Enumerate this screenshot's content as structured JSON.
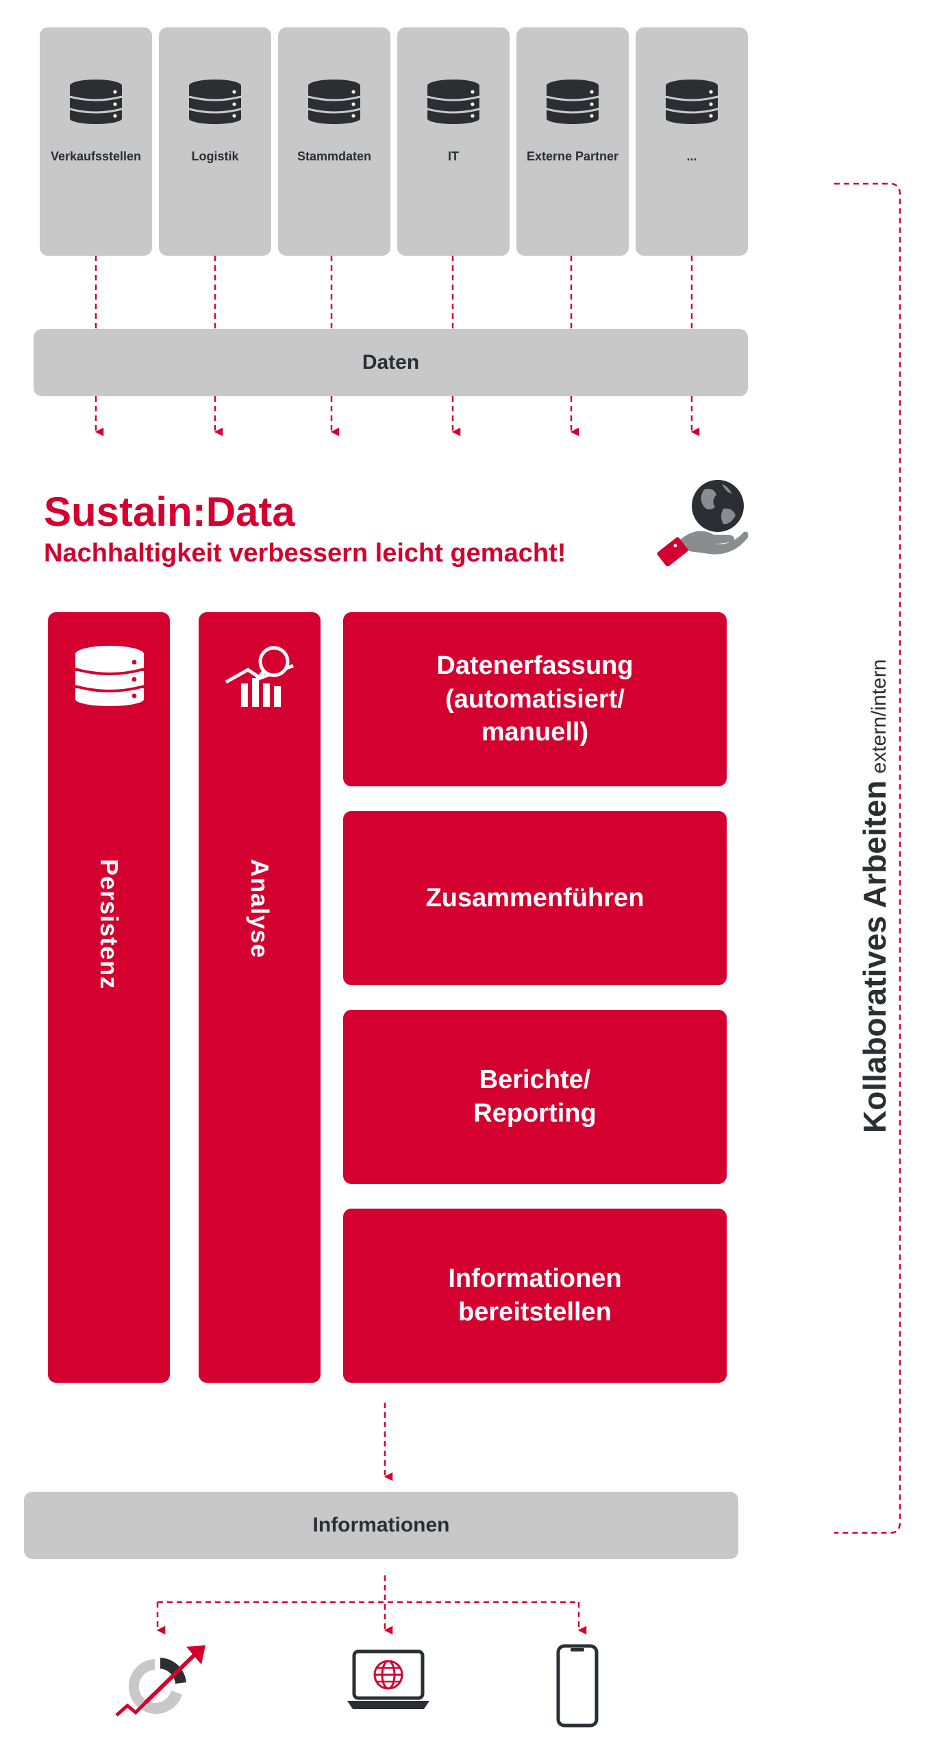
{
  "sources": [
    {
      "label": "Verkaufsstellen",
      "icon": "database-icon"
    },
    {
      "label": "Logistik",
      "icon": "database-icon"
    },
    {
      "label": "Stammdaten",
      "icon": "database-icon"
    },
    {
      "label": "IT",
      "icon": "database-icon"
    },
    {
      "label": "Externe Partner",
      "icon": "database-icon"
    },
    {
      "label": "...",
      "icon": "database-icon"
    }
  ],
  "data_bar": {
    "label": "Daten"
  },
  "headline": {
    "title": "Sustain:Data",
    "subtitle": "Nachhaltigkeit verbessern leicht gemacht!",
    "icon": "globe-in-hand-icon"
  },
  "pillars": [
    {
      "label": "Persistenz",
      "icon": "database-icon"
    },
    {
      "label": "Analyse",
      "icon": "analytics-chart-icon"
    }
  ],
  "functions": [
    {
      "label": "Datenerfassung\n(automatisiert/\nmanuell)"
    },
    {
      "label": "Zusammenführen"
    },
    {
      "label": "Berichte/\nReporting"
    },
    {
      "label": "Informationen\nbereitstellen"
    }
  ],
  "info_bar": {
    "label": "Informationen"
  },
  "collaboration": {
    "main": "Kollaboratives Arbeiten",
    "sub": "extern/intern"
  },
  "outputs": [
    {
      "icon": "dashboard-trend-icon"
    },
    {
      "icon": "laptop-web-icon"
    },
    {
      "icon": "smartphone-icon"
    }
  ],
  "colors": {
    "brand_red": "#d4002f",
    "panel_gray": "#c8c8c8",
    "dark": "#2b2f33",
    "white": "#ffffff"
  }
}
